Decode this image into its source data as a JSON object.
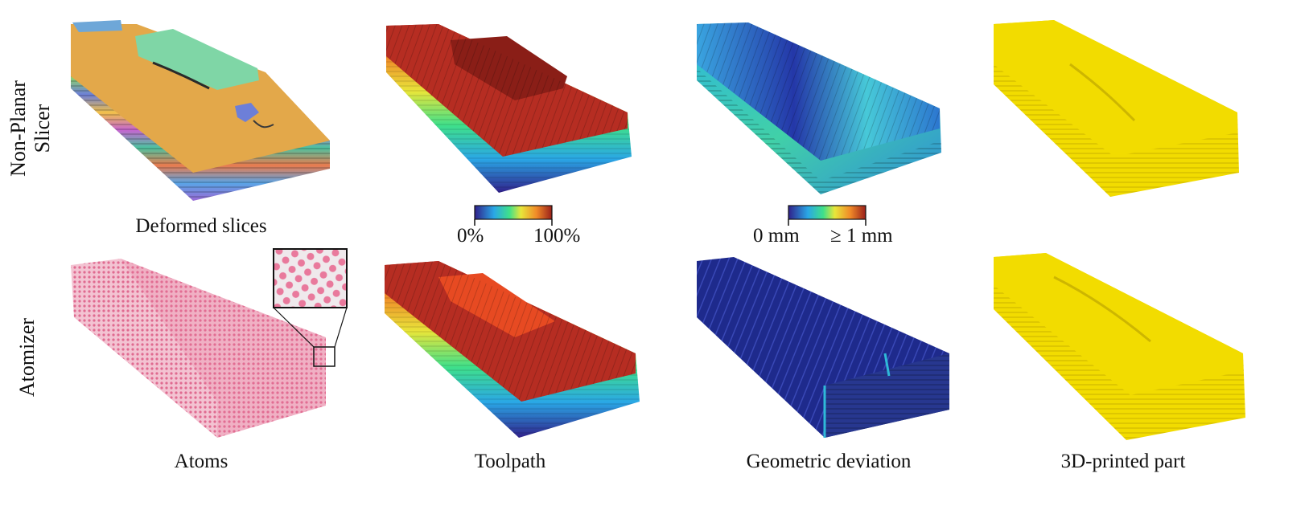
{
  "row_labels": {
    "top": [
      "Non-Planar",
      "Slicer"
    ],
    "bottom": "Atomizer"
  },
  "captions": {
    "deformed_slices": "Deformed slices",
    "atoms": "Atoms",
    "toolpath": "Toolpath",
    "geometric_deviation": "Geometric deviation",
    "printed_part": "3D-printed part"
  },
  "colorbars": {
    "toolpath": {
      "min_label": "0%",
      "max_label": "100%",
      "colormap": "jet"
    },
    "deviation": {
      "min_label": "0 mm",
      "max_label": "≥ 1 mm",
      "colormap": "jet"
    }
  },
  "colors": {
    "slice_top": "#e3a84a",
    "green_patch": "#7fd6a6",
    "blue_patch": "#6ea7d8",
    "atom_pink": "#e9799c",
    "toolpath_top": "#b62d22",
    "deviation_dark": "#1e2a8c",
    "deviation_mid": "#2fb9d9",
    "printed_yellow": "#f2dc00"
  }
}
